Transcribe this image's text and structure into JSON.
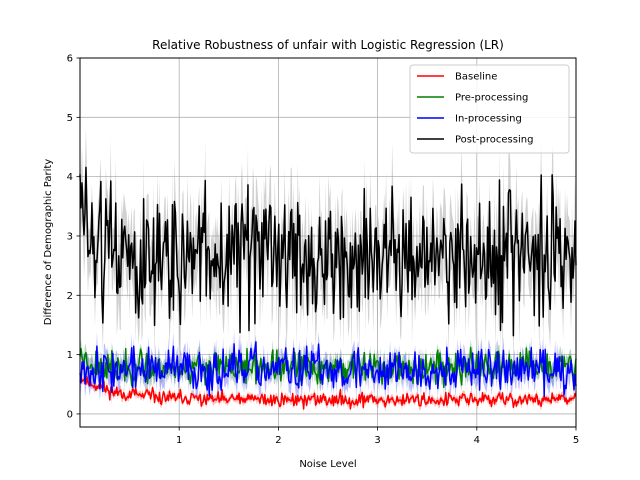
{
  "chart_data": {
    "type": "line",
    "title": "Relative Robustness of unfair with Logistic Regression (LR)",
    "xlabel": "Noise Level",
    "ylabel": "Difference of Demographic Parity",
    "xlim": [
      0.0,
      5.0
    ],
    "ylim": [
      -0.22,
      6.0
    ],
    "x_ticks": [
      1,
      2,
      3,
      4,
      5
    ],
    "y_ticks": [
      0,
      1,
      2,
      3,
      4,
      5,
      6
    ],
    "grid": true,
    "legend_position": "top-right",
    "n_points": 500,
    "series": [
      {
        "name": "Baseline",
        "color": "#ff0000",
        "band_color": "#ff6666",
        "x_start": 0.0,
        "x_end": 5.0,
        "mean_early": 0.62,
        "mean_late": 0.24,
        "decay": 0.35,
        "noise": 0.06,
        "band": 0.06,
        "seed": 11
      },
      {
        "name": "Pre-processing",
        "color": "#008000",
        "band_color": "#66aa66",
        "x_start": 0.0,
        "x_end": 5.0,
        "mean_early": 1.05,
        "mean_late": 0.78,
        "decay": 0.1,
        "noise": 0.13,
        "band": 0.14,
        "seed": 23
      },
      {
        "name": "In-processing",
        "color": "#0000ff",
        "band_color": "#6666ff",
        "x_start": 0.0,
        "x_end": 5.0,
        "mean_early": 0.85,
        "mean_late": 0.75,
        "decay": 0.1,
        "noise": 0.18,
        "band": 0.18,
        "seed": 37
      },
      {
        "name": "Post-processing",
        "color": "#000000",
        "band_color": "#999999",
        "x_start": 0.0,
        "x_end": 5.0,
        "mean_early": 3.6,
        "mean_late": 2.65,
        "decay": 0.12,
        "noise": 0.55,
        "band": 0.55,
        "seed": 51
      }
    ]
  }
}
